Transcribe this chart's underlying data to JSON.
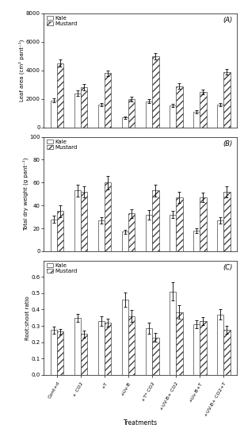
{
  "treatments_display": [
    "Cont+d",
    "+ CO2",
    "+T",
    "+Uv-B",
    "+T* CO2",
    "+UV-B+ CO2",
    "+Uv-B+T",
    "+UV-B+ CO2+T"
  ],
  "leaf_area_kale": [
    1900,
    2400,
    1600,
    700,
    1850,
    1550,
    1100,
    1600
  ],
  "leaf_area_mustard": [
    4500,
    2800,
    3800,
    2000,
    5000,
    2900,
    2500,
    3900
  ],
  "leaf_area_kale_err": [
    150,
    180,
    120,
    80,
    140,
    120,
    100,
    130
  ],
  "leaf_area_mustard_err": [
    250,
    220,
    200,
    160,
    220,
    190,
    170,
    210
  ],
  "leaf_area_ylim": [
    0,
    8000
  ],
  "leaf_area_yticks": [
    0,
    2000,
    4000,
    6000,
    8000
  ],
  "leaf_area_ylabel": "Leaf area (cm² pant⁻¹)",
  "tdw_kale": [
    28,
    53,
    27,
    17,
    32,
    32,
    18,
    27
  ],
  "tdw_mustard": [
    35,
    52,
    60,
    33,
    53,
    47,
    47,
    52
  ],
  "tdw_kale_err": [
    3,
    5,
    3,
    2,
    4,
    3,
    2,
    3
  ],
  "tdw_mustard_err": [
    5,
    5,
    6,
    4,
    5,
    5,
    4,
    5
  ],
  "tdw_ylim": [
    0,
    100
  ],
  "tdw_yticks": [
    0,
    20,
    40,
    60,
    80,
    100
  ],
  "tdw_ylabel": "Total dry weight (g pant⁻¹)",
  "rsr_kale": [
    0.275,
    0.35,
    0.33,
    0.46,
    0.285,
    0.51,
    0.31,
    0.37
  ],
  "rsr_mustard": [
    0.265,
    0.25,
    0.32,
    0.36,
    0.23,
    0.385,
    0.33,
    0.275
  ],
  "rsr_kale_err": [
    0.022,
    0.025,
    0.03,
    0.045,
    0.035,
    0.055,
    0.025,
    0.03
  ],
  "rsr_mustard_err": [
    0.018,
    0.02,
    0.025,
    0.035,
    0.025,
    0.042,
    0.025,
    0.025
  ],
  "rsr_ylim": [
    0.0,
    0.7
  ],
  "rsr_yticks": [
    0.0,
    0.1,
    0.2,
    0.3,
    0.4,
    0.5,
    0.6
  ],
  "rsr_ylabel": "Root:shoot ratio",
  "xlabel": "Treatments",
  "panel_labels": [
    "(A)",
    "(B)",
    "(C)"
  ],
  "bar_width": 0.28,
  "kale_color": "#ffffff",
  "mustard_hatch": "////",
  "edge_color": "#444444",
  "font_size": 5,
  "legend_font_size": 5,
  "ylabel_fontsize": 5
}
